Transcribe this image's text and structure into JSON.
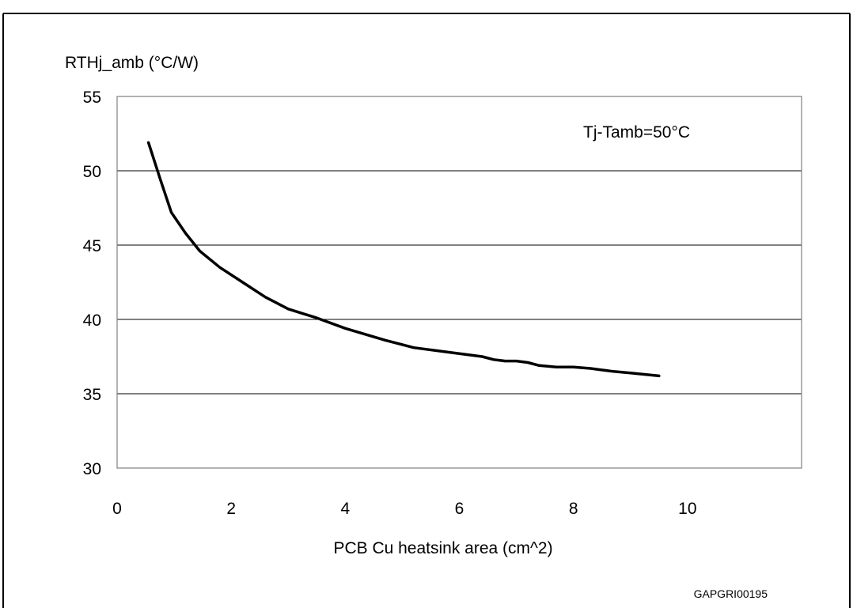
{
  "figure": {
    "caption_partial": "",
    "figure_code": "GAPGRI00195"
  },
  "chart_data": {
    "type": "line",
    "title": "",
    "xlabel": "PCB Cu heatsink area (cm^2)",
    "ylabel": "RTHj_amb (°C/W)",
    "xlim": [
      0,
      12
    ],
    "ylim": [
      30,
      55
    ],
    "x_ticks": [
      0,
      2,
      4,
      6,
      8,
      10
    ],
    "y_ticks": [
      30,
      35,
      40,
      45,
      50,
      55
    ],
    "grid": "horizontal",
    "annotation": "Tj-Tamb=50°C",
    "series": [
      {
        "x": [
          0.55,
          0.75,
          0.95,
          1.2,
          1.45,
          1.8,
          2.2,
          2.6,
          3.0,
          3.5,
          4.0,
          4.7,
          5.2,
          5.8,
          6.4,
          6.6,
          6.8,
          7.0,
          7.2,
          7.4,
          7.7,
          8.0,
          8.3,
          8.7,
          9.0,
          9.5
        ],
        "y": [
          51.9,
          49.5,
          47.2,
          45.8,
          44.6,
          43.5,
          42.5,
          41.5,
          40.7,
          40.1,
          39.4,
          38.6,
          38.1,
          37.8,
          37.5,
          37.3,
          37.2,
          37.2,
          37.1,
          36.9,
          36.8,
          36.8,
          36.7,
          36.5,
          36.4,
          36.2
        ]
      }
    ],
    "colors": {
      "line": "#000000",
      "grid": "#000000",
      "frame": "#808080",
      "text": "#000000"
    }
  }
}
